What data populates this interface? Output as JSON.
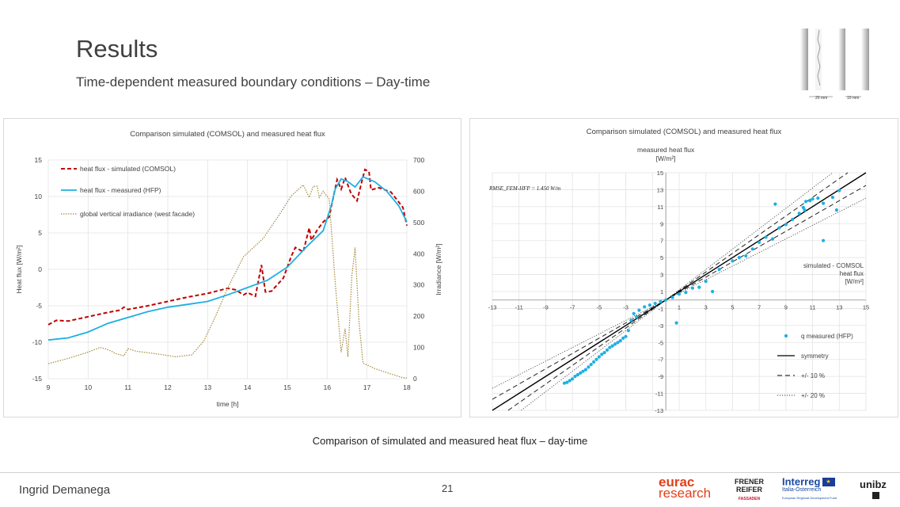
{
  "slide": {
    "title": "Results",
    "subtitle": "Time-dependent measured boundary conditions – Day-time",
    "caption": "Comparison of simulated and measured heat flux – day-time",
    "author": "Ingrid Demanega",
    "page_number": "21",
    "wall_dims": [
      "20 mm",
      "10 mm"
    ]
  },
  "logos": {
    "eurac_1": "eurac",
    "eurac_2": "research",
    "frener_1": "FRENER",
    "frener_2": "REIFER",
    "frener_3": "FASSADEN",
    "interreg_1": "Interreg",
    "interreg_2": "Italia-Österreich",
    "interreg_3": "European Regional Development Fund",
    "unibz": "unibz"
  },
  "colors": {
    "simulated": "#c00000",
    "measured": "#1cb0e3",
    "irradiance": "#a58a3c",
    "symmetry": "#000000",
    "grid": "#e3e3e3"
  },
  "chart_data": [
    {
      "type": "line",
      "title": "Comparison simulated (COMSOL) and measured heat flux",
      "xlabel": "time [h]",
      "ylabel": "Heat flux [W/m²]",
      "y2label": "Irradiance [W/m²]",
      "xlim": [
        9,
        18
      ],
      "ylim": [
        -15,
        15
      ],
      "y2lim": [
        0,
        700
      ],
      "xticks": [
        9,
        10,
        11,
        12,
        13,
        14,
        15,
        16,
        17,
        18
      ],
      "yticks": [
        -15,
        -10,
        -5,
        0,
        5,
        10,
        15
      ],
      "y2ticks": [
        0,
        100,
        200,
        300,
        400,
        500,
        600,
        700
      ],
      "grid": true,
      "legend_position": "top-left",
      "series": [
        {
          "name": "heat flux - simulated (COMSOL)",
          "axis": "left",
          "style": "dashed",
          "points": [
            [
              9,
              -7.6
            ],
            [
              9.2,
              -7
            ],
            [
              9.5,
              -7.1
            ],
            [
              10,
              -6.5
            ],
            [
              10.5,
              -5.9
            ],
            [
              10.8,
              -5.6
            ],
            [
              10.9,
              -5.2
            ],
            [
              11,
              -5.5
            ],
            [
              11.5,
              -5
            ],
            [
              12,
              -4.4
            ],
            [
              12.5,
              -3.8
            ],
            [
              13,
              -3.3
            ],
            [
              13.5,
              -2.6
            ],
            [
              13.7,
              -2.8
            ],
            [
              13.9,
              -3.5
            ],
            [
              14,
              -3.2
            ],
            [
              14.2,
              -3.7
            ],
            [
              14.35,
              0.6
            ],
            [
              14.45,
              -3.1
            ],
            [
              14.6,
              -3
            ],
            [
              14.9,
              -1.2
            ],
            [
              15.1,
              1.8
            ],
            [
              15.2,
              3
            ],
            [
              15.4,
              2.4
            ],
            [
              15.55,
              5.7
            ],
            [
              15.6,
              4
            ],
            [
              15.75,
              5.4
            ],
            [
              15.9,
              6.5
            ],
            [
              16.05,
              7.2
            ],
            [
              16.15,
              9.8
            ],
            [
              16.25,
              12.3
            ],
            [
              16.35,
              11
            ],
            [
              16.45,
              12.6
            ],
            [
              16.6,
              10.4
            ],
            [
              16.75,
              9.4
            ],
            [
              16.9,
              12.7
            ],
            [
              16.95,
              13.7
            ],
            [
              17.05,
              13.4
            ],
            [
              17.1,
              10.9
            ],
            [
              17.3,
              11.2
            ],
            [
              17.6,
              10.6
            ],
            [
              17.9,
              8.5
            ],
            [
              18,
              6
            ]
          ]
        },
        {
          "name": "heat flux - measured (HFP)",
          "axis": "left",
          "style": "solid",
          "points": [
            [
              9,
              -9.7
            ],
            [
              9.5,
              -9.4
            ],
            [
              10,
              -8.6
            ],
            [
              10.5,
              -7.4
            ],
            [
              11,
              -6.6
            ],
            [
              11.5,
              -5.8
            ],
            [
              12,
              -5.2
            ],
            [
              12.5,
              -4.8
            ],
            [
              13,
              -4.4
            ],
            [
              13.5,
              -3.5
            ],
            [
              14,
              -2.5
            ],
            [
              14.5,
              -1.5
            ],
            [
              15,
              0.3
            ],
            [
              15.5,
              3.2
            ],
            [
              15.9,
              5.3
            ],
            [
              16.1,
              8.7
            ],
            [
              16.2,
              11
            ],
            [
              16.35,
              12.4
            ],
            [
              16.5,
              12.1
            ],
            [
              16.7,
              11.3
            ],
            [
              16.9,
              12.7
            ],
            [
              17.2,
              12
            ],
            [
              17.5,
              10.7
            ],
            [
              17.8,
              8.7
            ],
            [
              18,
              6.5
            ]
          ]
        },
        {
          "name": "global vertical irradiance (west facade)",
          "axis": "right",
          "style": "dotted",
          "points": [
            [
              9,
              48
            ],
            [
              9.5,
              65
            ],
            [
              10,
              85
            ],
            [
              10.3,
              100
            ],
            [
              10.45,
              95
            ],
            [
              10.55,
              90
            ],
            [
              10.7,
              80
            ],
            [
              10.9,
              73
            ],
            [
              11,
              96
            ],
            [
              11.2,
              88
            ],
            [
              11.8,
              78
            ],
            [
              12.2,
              70
            ],
            [
              12.6,
              76
            ],
            [
              12.9,
              120
            ],
            [
              13.2,
              200
            ],
            [
              13.5,
              290
            ],
            [
              13.9,
              390
            ],
            [
              14.4,
              450
            ],
            [
              14.8,
              525
            ],
            [
              15.1,
              585
            ],
            [
              15.4,
              620
            ],
            [
              15.55,
              580
            ],
            [
              15.65,
              616
            ],
            [
              15.75,
              616
            ],
            [
              15.8,
              580
            ],
            [
              15.9,
              600
            ],
            [
              16.05,
              575
            ],
            [
              16.2,
              310
            ],
            [
              16.35,
              85
            ],
            [
              16.45,
              160
            ],
            [
              16.52,
              70
            ],
            [
              16.62,
              330
            ],
            [
              16.7,
              420
            ],
            [
              16.8,
              180
            ],
            [
              16.9,
              50
            ],
            [
              17.2,
              32
            ],
            [
              17.6,
              15
            ],
            [
              17.9,
              3
            ],
            [
              18,
              2
            ]
          ]
        }
      ]
    },
    {
      "type": "scatter",
      "title": "Comparison simulated (COMSOL) and measured heat flux",
      "xlabel": "simulated - COMSOL heat flux [W/m²]",
      "ylabel": "measured heat flux [W/m²]",
      "xlabel_lines": [
        "simulated - COMSOL",
        "heat flux",
        "[W/m²]"
      ],
      "ylabel_lines": [
        "measured heat flux",
        "[W/m²]"
      ],
      "annotation": "RMSE_FEM-HFP = 1.450 W/m",
      "xlim": [
        -13,
        15
      ],
      "ylim": [
        -13,
        15
      ],
      "xticks": [
        -13,
        -11,
        -9,
        -7,
        -5,
        -3,
        -1,
        1,
        3,
        5,
        7,
        9,
        11,
        13,
        15
      ],
      "yticks": [
        -13,
        -11,
        -9,
        -7,
        -5,
        -3,
        -1,
        1,
        3,
        5,
        7,
        9,
        11,
        13,
        15
      ],
      "grid": true,
      "legend_position": "bottom-right",
      "legend": [
        "q measured (HFP)",
        "symmetry",
        "+/- 10 %",
        "+/- 20 %"
      ],
      "series": [
        {
          "name": "q measured (HFP)",
          "points": [
            [
              -7.6,
              -9.8
            ],
            [
              -7.4,
              -9.7
            ],
            [
              -7.2,
              -9.5
            ],
            [
              -7,
              -9.3
            ],
            [
              -6.8,
              -9.0
            ],
            [
              -6.6,
              -8.8
            ],
            [
              -6.4,
              -8.6
            ],
            [
              -6.2,
              -8.4
            ],
            [
              -6,
              -8.2
            ],
            [
              -5.8,
              -7.9
            ],
            [
              -5.6,
              -7.6
            ],
            [
              -5.4,
              -7.3
            ],
            [
              -5.2,
              -7.0
            ],
            [
              -5,
              -6.7
            ],
            [
              -4.8,
              -6.4
            ],
            [
              -4.6,
              -6.2
            ],
            [
              -4.4,
              -5.9
            ],
            [
              -4.2,
              -5.6
            ],
            [
              -4,
              -5.4
            ],
            [
              -3.8,
              -5.2
            ],
            [
              -3.6,
              -5.0
            ],
            [
              -3.4,
              -4.8
            ],
            [
              -3.2,
              -4.5
            ],
            [
              -3,
              -4.3
            ],
            [
              -2.8,
              -3.6
            ],
            [
              -2.6,
              -2.4
            ],
            [
              -2.4,
              -1.6
            ],
            [
              -2.2,
              -2.0
            ],
            [
              -2,
              -1.2
            ],
            [
              -1.6,
              -0.8
            ],
            [
              -1.2,
              -0.6
            ],
            [
              -0.8,
              -0.4
            ],
            [
              -0.4,
              -0.2
            ],
            [
              0,
              0
            ],
            [
              0.5,
              0.3
            ],
            [
              1,
              0.7
            ],
            [
              1.5,
              0.9
            ],
            [
              2,
              1.4
            ],
            [
              0.8,
              -2.7
            ],
            [
              2.5,
              1.5
            ],
            [
              3,
              2.2
            ],
            [
              3.5,
              1.0
            ],
            [
              4,
              3.6
            ],
            [
              5,
              4.6
            ],
            [
              5.5,
              5.0
            ],
            [
              6,
              5.2
            ],
            [
              6.5,
              6.0
            ],
            [
              7,
              6.8
            ],
            [
              7.5,
              7.4
            ],
            [
              8,
              7.2
            ],
            [
              8.5,
              8.5
            ],
            [
              9,
              8.9
            ],
            [
              9.5,
              9.5
            ],
            [
              10,
              10.2
            ],
            [
              10.3,
              10.9
            ],
            [
              10.5,
              11.6
            ],
            [
              10.8,
              11.7
            ],
            [
              11,
              11.9
            ],
            [
              11.4,
              12.0
            ],
            [
              11.8,
              11.4
            ],
            [
              12.5,
              12.1
            ],
            [
              13,
              12.9
            ],
            [
              11.8,
              7.0
            ],
            [
              8.2,
              11.3
            ],
            [
              10.4,
              10.6
            ],
            [
              12.8,
              10.6
            ]
          ]
        }
      ]
    }
  ]
}
